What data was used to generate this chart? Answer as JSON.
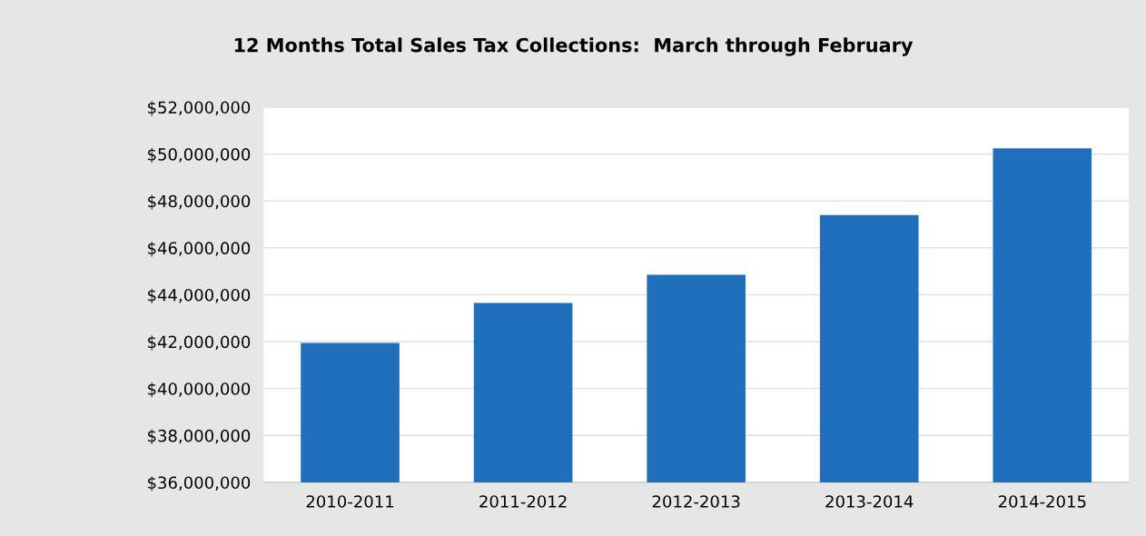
{
  "chart_data": {
    "type": "bar",
    "title": "12 Months Total Sales Tax Collections:  March through February",
    "categories": [
      "2010-2011",
      "2011-2012",
      "2012-2013",
      "2013-2014",
      "2014-2015"
    ],
    "values": [
      41950000,
      43650000,
      44850000,
      47400000,
      50250000
    ],
    "color": "#1f6fbc",
    "ylim": [
      36000000,
      52000000
    ],
    "yticks": [
      {
        "value": 36000000,
        "label": "$36,000,000"
      },
      {
        "value": 38000000,
        "label": "$38,000,000"
      },
      {
        "value": 40000000,
        "label": "$40,000,000"
      },
      {
        "value": 42000000,
        "label": "$42,000,000"
      },
      {
        "value": 44000000,
        "label": "$44,000,000"
      },
      {
        "value": 46000000,
        "label": "$46,000,000"
      },
      {
        "value": 48000000,
        "label": "$48,000,000"
      },
      {
        "value": 50000000,
        "label": "$50,000,000"
      },
      {
        "value": 52000000,
        "label": "$52,000,000"
      }
    ],
    "grid": "y"
  }
}
